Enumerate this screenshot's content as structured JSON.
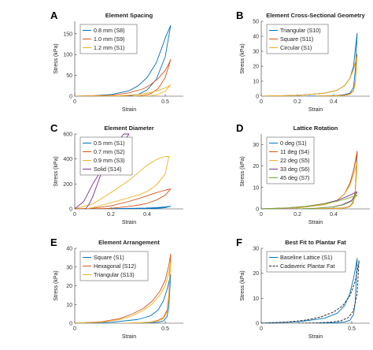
{
  "chart_data": [
    {
      "letter": "A",
      "type": "line",
      "title": "Element Spacing",
      "xlabel": "Strain",
      "ylabel": "Stress (kPa)",
      "xlim": [
        0,
        0.6
      ],
      "ylim": [
        0,
        180
      ],
      "xticks": [
        0,
        0.5
      ],
      "yticks": [
        0,
        50,
        100,
        150
      ],
      "legend_placement": "top-left",
      "series": [
        {
          "name": "0.8 mm (S8)",
          "color": "#0072BD",
          "x": [
            0.0,
            0.1,
            0.2,
            0.3,
            0.35,
            0.4,
            0.45,
            0.48,
            0.5,
            0.52,
            0.53
          ],
          "y": [
            0,
            1,
            4,
            13,
            25,
            45,
            80,
            115,
            140,
            160,
            170
          ],
          "x_unload": [
            0.53,
            0.5,
            0.45,
            0.4,
            0.35,
            0.3,
            0.25,
            0.2,
            0.15
          ],
          "y_unload": [
            170,
            95,
            40,
            15,
            4,
            1,
            0,
            0,
            0
          ]
        },
        {
          "name": "1.0 mm (S9)",
          "color": "#D95319",
          "x": [
            0.0,
            0.2,
            0.3,
            0.38,
            0.42,
            0.46,
            0.5,
            0.52,
            0.53
          ],
          "y": [
            0,
            2,
            8,
            18,
            28,
            42,
            62,
            78,
            88
          ],
          "x_unload": [
            0.53,
            0.5,
            0.46,
            0.42,
            0.38,
            0.33,
            0.28,
            0.22
          ],
          "y_unload": [
            88,
            45,
            18,
            6,
            2,
            0,
            0,
            0
          ]
        },
        {
          "name": "1.2 mm (S1)",
          "color": "#EDB120",
          "x": [
            0.0,
            0.25,
            0.35,
            0.42,
            0.47,
            0.5,
            0.52,
            0.53
          ],
          "y": [
            0,
            1,
            4,
            9,
            15,
            20,
            24,
            27
          ],
          "x_unload": [
            0.53,
            0.5,
            0.46,
            0.42,
            0.38,
            0.32
          ],
          "y_unload": [
            27,
            12,
            4,
            1,
            0,
            0
          ]
        }
      ]
    },
    {
      "letter": "B",
      "type": "line",
      "title": "Element Cross-Sectional Geometry",
      "xlabel": "Strain",
      "ylabel": "Stress (kPa)",
      "xlim": [
        0,
        0.6
      ],
      "ylim": [
        0,
        50
      ],
      "xticks": [
        0,
        0.2,
        0.4
      ],
      "yticks": [
        0,
        10,
        20,
        30,
        40,
        50
      ],
      "legend_placement": "top-left",
      "series": [
        {
          "name": "Triangular (S10)",
          "color": "#0072BD",
          "x": [
            0.0,
            0.2,
            0.35,
            0.42,
            0.46,
            0.49,
            0.51,
            0.52,
            0.53
          ],
          "y": [
            0,
            0.5,
            2,
            4,
            7,
            12,
            20,
            32,
            42
          ],
          "x_unload": [
            0.53,
            0.52,
            0.51,
            0.49,
            0.46,
            0.42,
            0.35,
            0.25
          ],
          "y_unload": [
            42,
            18,
            6,
            2,
            1,
            0.5,
            0.2,
            0
          ]
        },
        {
          "name": "Square (S11)",
          "color": "#D95319",
          "x": [
            0.0,
            0.2,
            0.35,
            0.42,
            0.46,
            0.49,
            0.51,
            0.53
          ],
          "y": [
            0,
            0.5,
            2,
            4,
            7,
            12,
            18,
            28
          ],
          "x_unload": [
            0.53,
            0.52,
            0.51,
            0.49,
            0.46,
            0.4,
            0.3
          ],
          "y_unload": [
            28,
            10,
            4,
            1.5,
            0.7,
            0.3,
            0
          ]
        },
        {
          "name": "Circular (S1)",
          "color": "#EDB120",
          "x": [
            0.0,
            0.2,
            0.35,
            0.42,
            0.46,
            0.49,
            0.51,
            0.53
          ],
          "y": [
            0,
            0.5,
            2,
            4,
            7,
            12,
            18,
            27
          ],
          "x_unload": [
            0.53,
            0.52,
            0.51,
            0.49,
            0.46,
            0.4,
            0.3
          ],
          "y_unload": [
            27,
            9,
            3.5,
            1.2,
            0.5,
            0.2,
            0
          ]
        }
      ]
    },
    {
      "letter": "C",
      "type": "line",
      "title": "Element Diameter",
      "xlabel": "Strain",
      "ylabel": "Stress (kPa)",
      "xlim": [
        0,
        0.6
      ],
      "ylim": [
        0,
        600
      ],
      "xticks": [
        0,
        0.2,
        0.4
      ],
      "yticks": [
        0,
        200,
        400,
        600
      ],
      "legend_placement": "top-left",
      "series": [
        {
          "name": "0.5 mm (S1)",
          "color": "#0072BD",
          "x": [
            0.0,
            0.2,
            0.3,
            0.4,
            0.46,
            0.5,
            0.53
          ],
          "y": [
            0,
            2,
            4,
            7,
            11,
            16,
            22
          ],
          "x_unload": [
            0.53,
            0.5,
            0.45,
            0.4,
            0.3
          ],
          "y_unload": [
            22,
            10,
            4,
            1,
            0
          ]
        },
        {
          "name": "0.7 mm (S2)",
          "color": "#D95319",
          "x": [
            0.0,
            0.1,
            0.2,
            0.3,
            0.38,
            0.45,
            0.5,
            0.53
          ],
          "y": [
            0,
            5,
            25,
            60,
            95,
            130,
            150,
            160
          ],
          "x_unload": [
            0.53,
            0.5,
            0.45,
            0.4,
            0.35,
            0.3,
            0.25,
            0.2,
            0.15,
            0.1
          ],
          "y_unload": [
            160,
            110,
            70,
            45,
            30,
            20,
            12,
            5,
            2,
            0
          ]
        },
        {
          "name": "0.9 mm (S3)",
          "color": "#EDB120",
          "x": [
            0.0,
            0.1,
            0.2,
            0.3,
            0.35,
            0.4,
            0.45,
            0.5,
            0.52
          ],
          "y": [
            0,
            40,
            130,
            230,
            290,
            350,
            395,
            420,
            420
          ],
          "x_unload": [
            0.52,
            0.5,
            0.45,
            0.4,
            0.35,
            0.3,
            0.25,
            0.2,
            0.15,
            0.1,
            0.06
          ],
          "y_unload": [
            420,
            280,
            190,
            140,
            110,
            90,
            70,
            50,
            30,
            10,
            0
          ]
        },
        {
          "name": "Solid (S14)",
          "color": "#7E2F8E",
          "x": [
            0.0,
            0.05,
            0.1,
            0.15,
            0.2,
            0.25,
            0.28,
            0.3
          ],
          "y": [
            0,
            60,
            200,
            320,
            420,
            500,
            560,
            600
          ],
          "x_unload": [
            0.27,
            0.25,
            0.2,
            0.15,
            0.12,
            0.1,
            0.08,
            0.06
          ],
          "y_unload": [
            600,
            560,
            430,
            300,
            180,
            100,
            40,
            0
          ]
        }
      ]
    },
    {
      "letter": "D",
      "type": "line",
      "title": "Lattice Rotation",
      "xlabel": "Strain",
      "ylabel": "Stress (kPa)",
      "xlim": [
        0,
        0.6
      ],
      "ylim": [
        0,
        35
      ],
      "xticks": [
        0,
        0.2,
        0.4
      ],
      "yticks": [
        0,
        10,
        20,
        30
      ],
      "legend_placement": "top-left",
      "series": [
        {
          "name": "0 deg (S1)",
          "color": "#0072BD",
          "x": [
            0.0,
            0.2,
            0.35,
            0.42,
            0.46,
            0.49,
            0.51,
            0.53
          ],
          "y": [
            0,
            0.5,
            2,
            4,
            7,
            12,
            18,
            26
          ],
          "x_unload": [
            0.53,
            0.52,
            0.51,
            0.49,
            0.46,
            0.4,
            0.3
          ],
          "y_unload": [
            26,
            9,
            3.5,
            1.2,
            0.5,
            0.2,
            0
          ]
        },
        {
          "name": "11 deg (S4)",
          "color": "#D95319",
          "x": [
            0.0,
            0.2,
            0.35,
            0.42,
            0.46,
            0.49,
            0.51,
            0.53
          ],
          "y": [
            0,
            0.5,
            2,
            4,
            7,
            12,
            18,
            27
          ],
          "x_unload": [
            0.53,
            0.52,
            0.51,
            0.49,
            0.46,
            0.4,
            0.3
          ],
          "y_unload": [
            27,
            9,
            3.5,
            1.2,
            0.5,
            0.2,
            0
          ]
        },
        {
          "name": "22 deg (S5)",
          "color": "#EDB120",
          "x": [
            0.0,
            0.2,
            0.35,
            0.42,
            0.46,
            0.49,
            0.51,
            0.53
          ],
          "y": [
            0,
            0.5,
            2,
            4,
            7,
            11,
            16,
            22
          ],
          "x_unload": [
            0.53,
            0.52,
            0.51,
            0.49,
            0.46,
            0.4,
            0.3
          ],
          "y_unload": [
            22,
            8,
            3,
            1,
            0.4,
            0.1,
            0
          ]
        },
        {
          "name": "33 deg (S6)",
          "color": "#7E2F8E",
          "x": [
            0.0,
            0.15,
            0.25,
            0.35,
            0.42,
            0.48,
            0.53
          ],
          "y": [
            0,
            0.5,
            1.2,
            2.5,
            4,
            6,
            8
          ],
          "x_unload": [
            0.53,
            0.5,
            0.45,
            0.4,
            0.3,
            0.2
          ],
          "y_unload": [
            8,
            4,
            2,
            1,
            0.3,
            0
          ]
        },
        {
          "name": "45 deg (S7)",
          "color": "#77AC30",
          "x": [
            0.0,
            0.15,
            0.25,
            0.35,
            0.42,
            0.48,
            0.53
          ],
          "y": [
            0,
            0.5,
            1.2,
            2.4,
            3.6,
            5,
            6.5
          ],
          "x_unload": [
            0.53,
            0.5,
            0.45,
            0.4,
            0.3,
            0.2
          ],
          "y_unload": [
            6.5,
            3.5,
            1.8,
            0.9,
            0.3,
            0
          ]
        }
      ]
    },
    {
      "letter": "E",
      "type": "line",
      "title": "Element Arrangement",
      "xlabel": "Strain",
      "ylabel": "Stress (kPa)",
      "xlim": [
        0,
        0.6
      ],
      "ylim": [
        0,
        40
      ],
      "xticks": [
        0,
        0.5
      ],
      "yticks": [
        0,
        10,
        20,
        30,
        40
      ],
      "legend_placement": "top-left",
      "series": [
        {
          "name": "Square (S1)",
          "color": "#0072BD",
          "x": [
            0.0,
            0.2,
            0.35,
            0.42,
            0.46,
            0.49,
            0.51,
            0.53
          ],
          "y": [
            0,
            0.5,
            2,
            4,
            7,
            12,
            18,
            26
          ],
          "x_unload": [
            0.53,
            0.52,
            0.51,
            0.49,
            0.46,
            0.4,
            0.3
          ],
          "y_unload": [
            26,
            9,
            3.5,
            1.2,
            0.5,
            0.2,
            0
          ]
        },
        {
          "name": "Hexagonal (S12)",
          "color": "#D95319",
          "x": [
            0.0,
            0.15,
            0.25,
            0.32,
            0.38,
            0.43,
            0.47,
            0.5,
            0.52,
            0.53
          ],
          "y": [
            0,
            0.8,
            2.5,
            5,
            8,
            12,
            17,
            23,
            31,
            37
          ],
          "x_unload": [
            0.53,
            0.52,
            0.51,
            0.49,
            0.46,
            0.42,
            0.36,
            0.28
          ],
          "y_unload": [
            37,
            15,
            7,
            3,
            1.5,
            0.6,
            0.2,
            0
          ]
        },
        {
          "name": "Triangular (S13)",
          "color": "#EDB120",
          "x": [
            0.0,
            0.15,
            0.25,
            0.32,
            0.38,
            0.43,
            0.47,
            0.5,
            0.52,
            0.53
          ],
          "y": [
            0,
            0.6,
            2,
            4,
            7,
            10.5,
            15,
            20,
            27,
            33
          ],
          "x_unload": [
            0.53,
            0.52,
            0.51,
            0.49,
            0.46,
            0.42,
            0.36,
            0.28
          ],
          "y_unload": [
            33,
            13,
            6,
            2.5,
            1.2,
            0.5,
            0.2,
            0
          ]
        }
      ]
    },
    {
      "letter": "F",
      "type": "line",
      "title": "Best Fit to Plantar Fat",
      "xlabel": "Strain",
      "ylabel": "Stress (kPa)",
      "xlim": [
        0,
        0.6
      ],
      "ylim": [
        0,
        30
      ],
      "xticks": [
        0,
        0.5
      ],
      "yticks": [
        0,
        10,
        20,
        30
      ],
      "legend_placement": "top-left",
      "series": [
        {
          "name": "Baseline Lattice (S1)",
          "color": "#0072BD",
          "x": [
            0.0,
            0.2,
            0.35,
            0.42,
            0.46,
            0.49,
            0.51,
            0.53
          ],
          "y": [
            0,
            0.5,
            2,
            4,
            7,
            12,
            18,
            26
          ],
          "x_unload": [
            0.53,
            0.52,
            0.51,
            0.49,
            0.46,
            0.4,
            0.3
          ],
          "y_unload": [
            26,
            9,
            3.5,
            1.2,
            0.5,
            0.2,
            0
          ]
        },
        {
          "name": "Cadaveric Plantar Fat",
          "color": "#222222",
          "dashed": true,
          "x": [
            0.0,
            0.15,
            0.25,
            0.33,
            0.4,
            0.45,
            0.49,
            0.52,
            0.54
          ],
          "y": [
            0,
            0.5,
            1.3,
            2.5,
            4.5,
            7,
            11,
            17,
            25
          ],
          "x_unload": [
            0.54,
            0.53,
            0.51,
            0.48,
            0.44,
            0.38,
            0.3,
            0.2
          ],
          "y_unload": [
            25,
            12,
            5,
            2.2,
            1,
            0.4,
            0.1,
            0
          ]
        }
      ]
    }
  ]
}
